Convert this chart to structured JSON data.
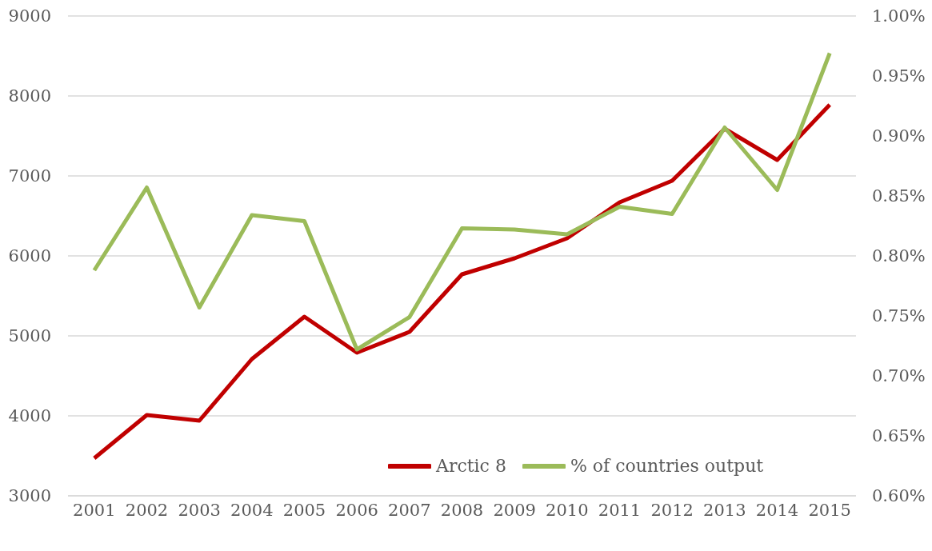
{
  "chart_data": {
    "type": "line",
    "categories": [
      "2001",
      "2002",
      "2003",
      "2004",
      "2005",
      "2006",
      "2007",
      "2008",
      "2009",
      "2010",
      "2011",
      "2012",
      "2013",
      "2014",
      "2015"
    ],
    "series": [
      {
        "name": "Arctic 8",
        "color": "#c00000",
        "values": [
          3470,
          4010,
          3940,
          4710,
          5240,
          4790,
          5050,
          5770,
          5970,
          6220,
          6670,
          6940,
          7590,
          7200,
          7890
        ]
      },
      {
        "name": "% of countries output",
        "color": "#9bbb59",
        "axis": "y2",
        "values": [
          0.788,
          0.857,
          0.757,
          0.834,
          0.829,
          0.722,
          0.749,
          0.823,
          0.822,
          0.818,
          0.841,
          0.835,
          0.907,
          0.855,
          0.969
        ]
      }
    ],
    "ylim": [
      3000,
      9000
    ],
    "yticks": [
      3000,
      4000,
      5000,
      6000,
      7000,
      8000,
      9000
    ],
    "y2lim": [
      0.6,
      1.0
    ],
    "y2ticks": [
      {
        "value": 0.6,
        "label": "0.60%"
      },
      {
        "value": 0.65,
        "label": "0.65%"
      },
      {
        "value": 0.7,
        "label": "0.70%"
      },
      {
        "value": 0.75,
        "label": "0.75%"
      },
      {
        "value": 0.8,
        "label": "0.80%"
      },
      {
        "value": 0.85,
        "label": "0.85%"
      },
      {
        "value": 0.9,
        "label": "0.90%"
      },
      {
        "value": 0.95,
        "label": "0.95%"
      },
      {
        "value": 1.0,
        "label": "1.00%"
      }
    ],
    "grid": "y",
    "legend": "bottom right",
    "line_style": "solid"
  }
}
